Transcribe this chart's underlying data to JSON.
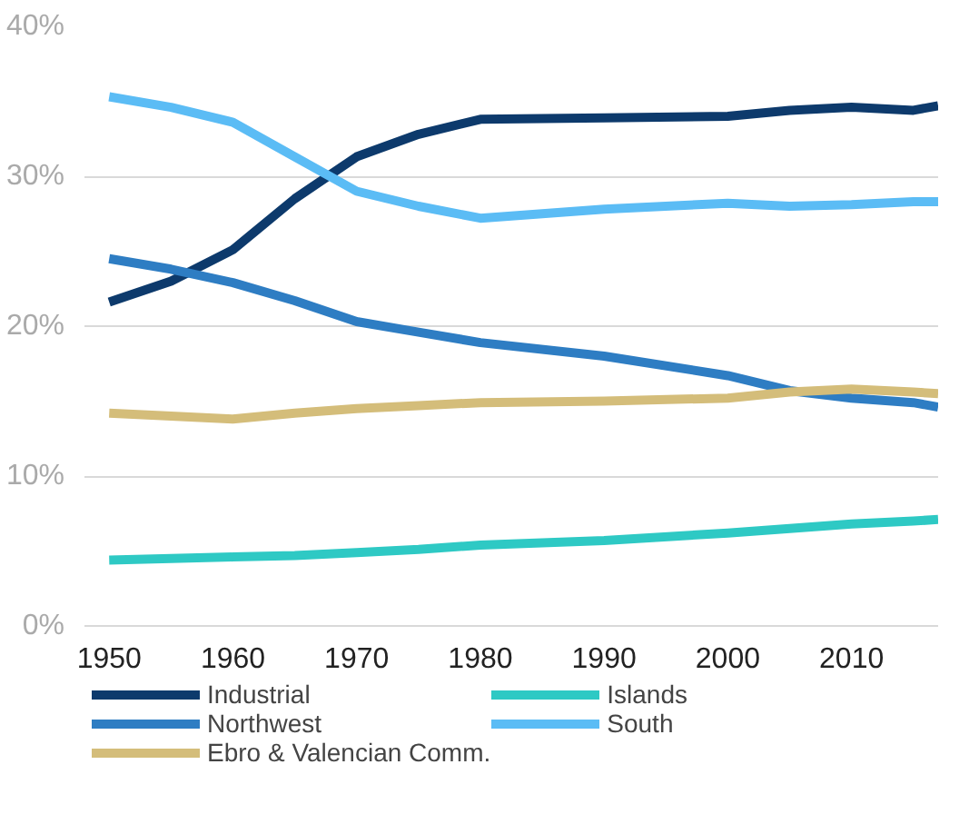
{
  "chart_data": {
    "type": "line",
    "x": [
      1950,
      1955,
      1960,
      1965,
      1970,
      1975,
      1980,
      1990,
      2000,
      2005,
      2010,
      2015,
      2017
    ],
    "series": [
      {
        "name": "Industrial",
        "color": "#0d3a6c",
        "values": [
          21.6,
          23.0,
          25.1,
          28.5,
          31.3,
          32.8,
          33.8,
          33.9,
          34.0,
          34.4,
          34.6,
          34.4,
          34.7
        ]
      },
      {
        "name": "Northwest",
        "color": "#2e7dc3",
        "values": [
          24.5,
          23.8,
          22.9,
          21.7,
          20.3,
          19.6,
          18.9,
          18.0,
          16.7,
          15.7,
          15.2,
          14.9,
          14.6
        ]
      },
      {
        "name": "Ebro & Valencian Comm.",
        "color": "#d4bd7a",
        "values": [
          14.2,
          14.0,
          13.8,
          14.2,
          14.5,
          14.7,
          14.9,
          15.0,
          15.2,
          15.6,
          15.8,
          15.6,
          15.5
        ]
      },
      {
        "name": "Islands",
        "color": "#2ec9c4",
        "values": [
          4.4,
          4.5,
          4.6,
          4.7,
          4.9,
          5.1,
          5.4,
          5.7,
          6.2,
          6.5,
          6.8,
          7.0,
          7.1
        ]
      },
      {
        "name": "South",
        "color": "#5bbcf5",
        "values": [
          35.3,
          34.6,
          33.6,
          31.3,
          29.0,
          28.0,
          27.2,
          27.8,
          28.2,
          28.0,
          28.1,
          28.3,
          28.3
        ]
      }
    ],
    "xlim": [
      1948,
      2017
    ],
    "xticks": [
      1950,
      1960,
      1970,
      1980,
      1990,
      2000,
      2010
    ],
    "ylim": [
      0,
      40
    ],
    "yticks": [
      {
        "value": 0,
        "label": "0%"
      },
      {
        "value": 10,
        "label": "10%"
      },
      {
        "value": 20,
        "label": "20%"
      },
      {
        "value": 30,
        "label": "30%"
      },
      {
        "value": 40,
        "label": "40%"
      }
    ],
    "grid": "y",
    "legend": "bottom",
    "line_style": "solid"
  }
}
